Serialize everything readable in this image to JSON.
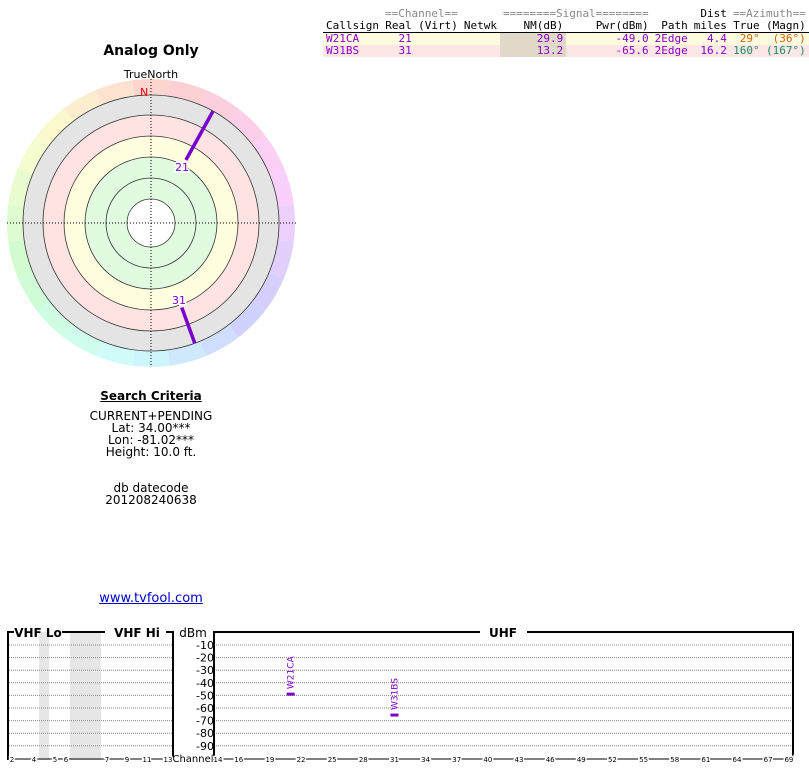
{
  "title": "Analog Only",
  "true_north": "TrueNorth",
  "north_label": "N",
  "table": {
    "group_headers": [
      "==Channel==",
      "========Signal========",
      "Dist",
      "==Azimuth=="
    ],
    "headers": [
      "Callsign",
      "Real",
      "(Virt)",
      "Netwk",
      "NM(dB)",
      "Pwr(dBm)",
      "Path",
      "miles",
      "True",
      "(Magn)"
    ],
    "rows": [
      {
        "callsign": "W21CA",
        "real": "21",
        "virt": "",
        "netwk": "",
        "nm": "29.9",
        "pwr": "-49.0",
        "path": "2Edge",
        "dist": "4.4",
        "true": "29°",
        "magn": "(36°)",
        "bg": "#fffbe0",
        "az_color": "#cc6600",
        "pwr_val": -49.0,
        "az": 29
      },
      {
        "callsign": "W31BS",
        "real": "31",
        "virt": "",
        "netwk": "",
        "nm": "13.2",
        "pwr": "-65.6",
        "path": "2Edge",
        "dist": "16.2",
        "true": "160°",
        "magn": "(167°)",
        "bg": "#fde6e6",
        "az_color": "#228866",
        "pwr_val": -65.6,
        "az": 160
      }
    ]
  },
  "criteria": {
    "heading": "Search Criteria",
    "mode": "CURRENT+PENDING",
    "lat": "Lat: 34.00***",
    "lon": "Lon: -81.02***",
    "height": "Height: 10.0 ft.",
    "db_label": "db datecode",
    "db_value": "201208240638"
  },
  "link": "www.tvfool.com",
  "spectrum": {
    "vhf_lo": "VHF Lo",
    "vhf_hi": "VHF Hi",
    "uhf": "UHF",
    "dbm": "dBm",
    "channel": "Channel",
    "db_ticks": [
      "-10",
      "-20",
      "-30",
      "-40",
      "-50",
      "-60",
      "-70",
      "-80",
      "-90"
    ],
    "vhf_ticks": [
      "2",
      "4",
      "5",
      "6",
      "7",
      "9",
      "11",
      "13"
    ],
    "uhf_ticks": [
      "14",
      "16",
      "19",
      "22",
      "25",
      "28",
      "31",
      "34",
      "37",
      "40",
      "43",
      "46",
      "49",
      "52",
      "55",
      "58",
      "61",
      "64",
      "67",
      "69"
    ]
  },
  "colors": {
    "station": "#7700cc",
    "north": "#ff0000"
  }
}
